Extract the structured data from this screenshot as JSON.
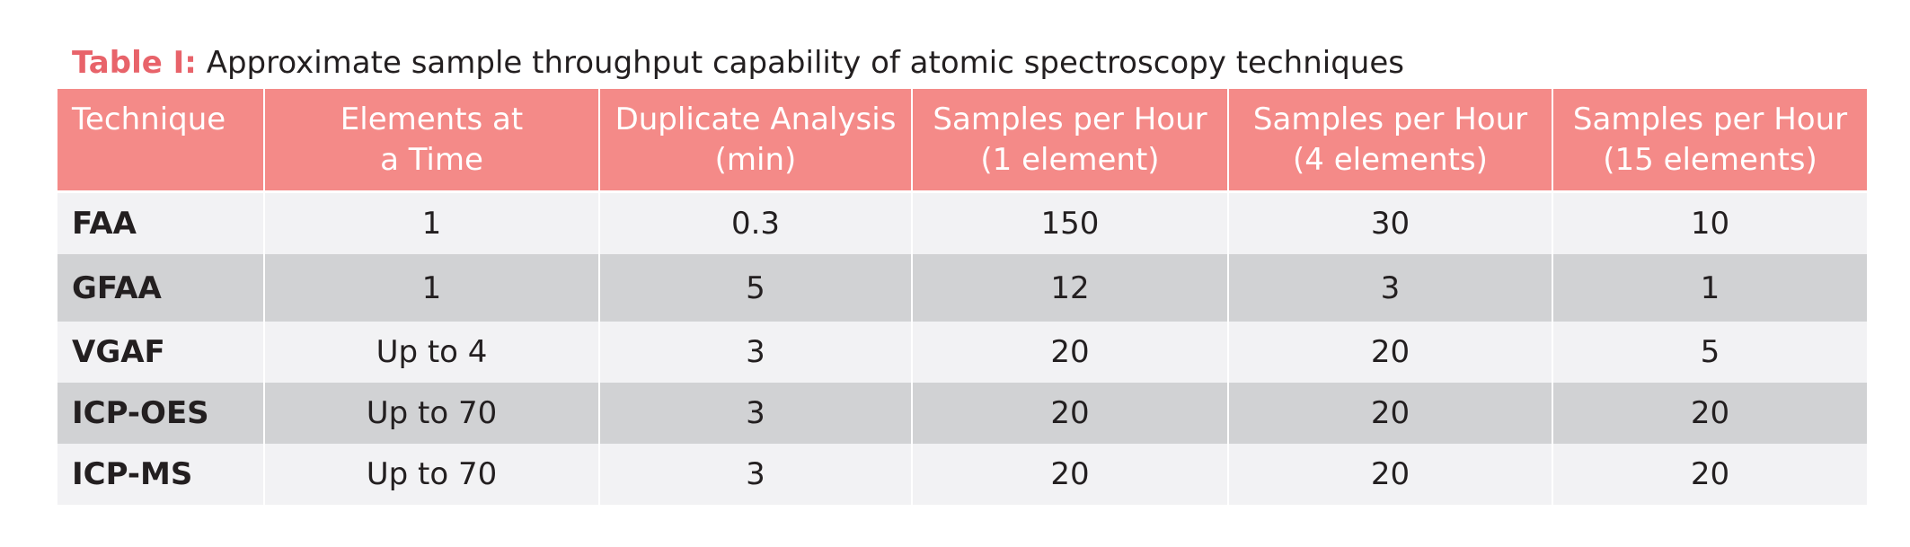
{
  "caption": {
    "label": "Table I:",
    "text": " Approximate sample throughput capability of atomic spectroscopy techniques"
  },
  "columns": [
    {
      "line1": "Technique",
      "line2": ""
    },
    {
      "line1": "Elements at",
      "line2": "a Time"
    },
    {
      "line1": "Duplicate Analysis",
      "line2": "(min)"
    },
    {
      "line1": "Samples per Hour",
      "line2": "(1 element)"
    },
    {
      "line1": "Samples per Hour",
      "line2": "(4 elements)"
    },
    {
      "line1": "Samples per Hour",
      "line2": "(15 elements)"
    }
  ],
  "rows": [
    {
      "technique": "FAA",
      "elements": "1",
      "duplicate": "0.3",
      "sph1": "150",
      "sph4": "30",
      "sph15": "10"
    },
    {
      "technique": "GFAA",
      "elements": "1",
      "duplicate": "5",
      "sph1": "12",
      "sph4": "3",
      "sph15": "1"
    },
    {
      "technique": "VGAF",
      "elements": "Up to 4",
      "duplicate": "3",
      "sph1": "20",
      "sph4": "20",
      "sph15": "5"
    },
    {
      "technique": "ICP-OES",
      "elements": "Up to 70",
      "duplicate": "3",
      "sph1": "20",
      "sph4": "20",
      "sph15": "20"
    },
    {
      "technique": "ICP-MS",
      "elements": "Up to 70",
      "duplicate": "3",
      "sph1": "20",
      "sph4": "20",
      "sph15": "20"
    }
  ],
  "colors": {
    "header_bg": "#f48a88",
    "caption_label": "#e8636a",
    "row_light": "#f2f2f4",
    "row_dark": "#d1d2d4"
  }
}
